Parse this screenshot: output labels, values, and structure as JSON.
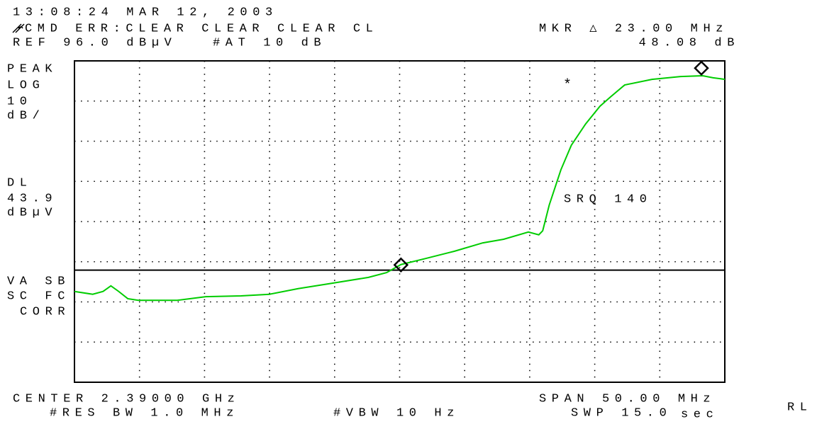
{
  "chart_data": {
    "type": "line",
    "header": {
      "timestamp": "13:08:24 MAR 12, 2003",
      "status": "CMD ERR:CLEAR CLEAR CLEAR CL",
      "ref": "REF 96.0 dBµV",
      "atten": "#AT 10 dB",
      "marker_freq": "MKR △ 23.00 MHz",
      "marker_amp": "48.08 dB"
    },
    "side_labels": [
      "PEAK",
      "LOG",
      "10",
      "dB/"
    ],
    "dl_label": "DL",
    "dl_value": 43.9,
    "dl_unit": "dBµV",
    "lower_labels": [
      "VA SB",
      "SC FC",
      "CORR"
    ],
    "annotation": "SRQ 140",
    "footer": {
      "center": "CENTER 2.39000 GHz",
      "span": "SPAN 50.00 MHz",
      "rbw": "#RES BW 1.0 MHz",
      "vbw": "#VBW 10 Hz",
      "sweep": "SWP 15.0",
      "sweep_unit": "sec",
      "rl": "RL"
    },
    "xlim": [
      2365,
      2415
    ],
    "ylim": [
      16,
      96
    ],
    "xticks": [
      2370,
      2375,
      2380,
      2385,
      2390,
      2395,
      2400,
      2405,
      2410
    ],
    "yticks": [
      26,
      36,
      46,
      56,
      66,
      76,
      86
    ],
    "grid": true,
    "series": [
      {
        "color": "#00cc00",
        "x": [
          2365.0,
          2366.4,
          2367.2,
          2367.8,
          2368.4,
          2369.1,
          2369.9,
          2372.9,
          2375.1,
          2377.8,
          2380.0,
          2382.2,
          2384.9,
          2387.6,
          2389.0,
          2390.1,
          2392.0,
          2394.2,
          2396.4,
          2398.0,
          2399.9,
          2400.7,
          2401.0,
          2401.5,
          2402.4,
          2403.2,
          2404.3,
          2405.4,
          2406.2,
          2407.3,
          2409.4,
          2411.6,
          2413.3,
          2414.1,
          2415.0
        ],
        "values": [
          38.6,
          37.9,
          38.6,
          40.0,
          38.6,
          36.8,
          36.4,
          36.4,
          37.3,
          37.5,
          37.9,
          39.3,
          40.7,
          42.1,
          43.3,
          45.3,
          46.8,
          48.6,
          50.7,
          51.6,
          53.4,
          52.7,
          53.7,
          60.1,
          68.9,
          75.0,
          80.3,
          84.7,
          87.0,
          90.0,
          91.4,
          92.1,
          92.3,
          91.8,
          91.4
        ]
      }
    ],
    "markers": [
      {
        "x": 2390.1,
        "y": 45.2
      },
      {
        "x": 2413.2,
        "y": 94.2
      }
    ]
  }
}
